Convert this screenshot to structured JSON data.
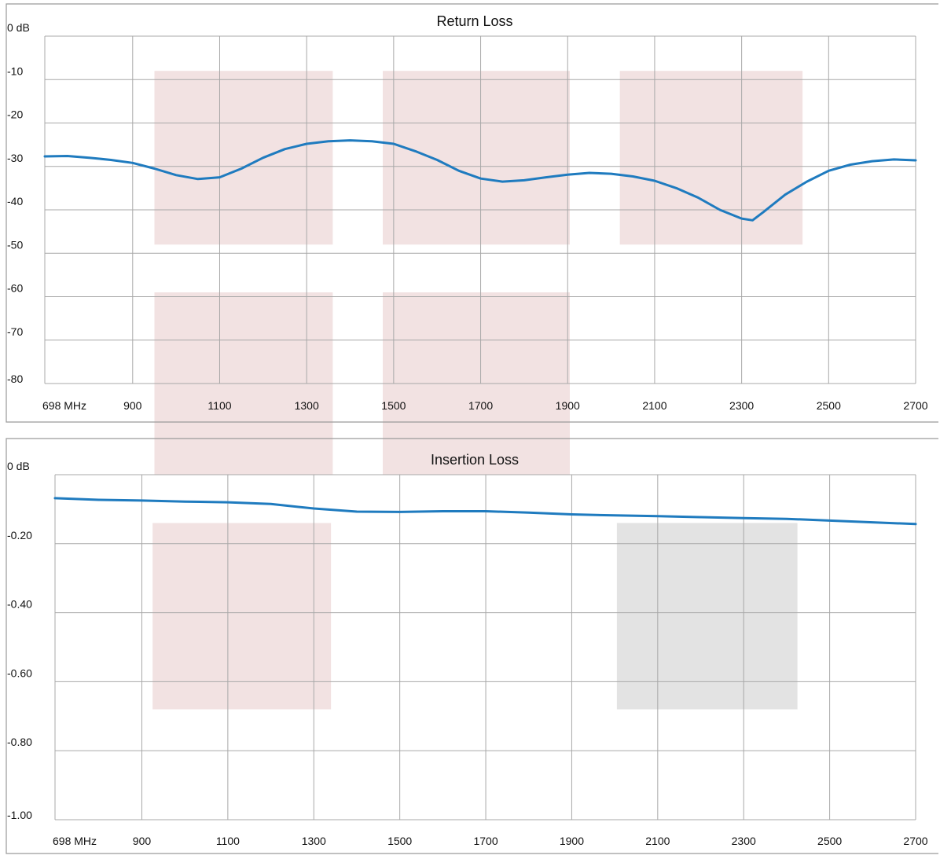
{
  "colors": {
    "line": "#1f7bbf",
    "band_red": "#f2e2e2",
    "band_gray": "#e3e3e3",
    "grid": "#a8a8a8",
    "frame": "#9a9a9a"
  },
  "chart_data": [
    {
      "type": "line",
      "title": "Return Loss",
      "xlim": [
        698,
        2700
      ],
      "ylim": [
        -80,
        0
      ],
      "x_ticks": [
        698,
        900,
        1100,
        1300,
        1500,
        1700,
        1900,
        2100,
        2300,
        2500,
        2700
      ],
      "x_tick_labels": [
        "698 MHz",
        "900",
        "1100",
        "1300",
        "1500",
        "1700",
        "1900",
        "2100",
        "2300",
        "2500",
        "2700"
      ],
      "y_ticks": [
        0,
        -10,
        -20,
        -30,
        -40,
        -50,
        -60,
        -70,
        -80
      ],
      "y_tick_labels": [
        "0 dB",
        "-10",
        "-20",
        "-30",
        "-40",
        "-50",
        "-60",
        "-70",
        "-80"
      ],
      "grid": true,
      "series": [
        {
          "x": [
            698,
            750,
            800,
            850,
            900,
            950,
            1000,
            1050,
            1100,
            1150,
            1200,
            1250,
            1300,
            1350,
            1400,
            1450,
            1500,
            1550,
            1600,
            1650,
            1700,
            1750,
            1800,
            1850,
            1900,
            1950,
            2000,
            2050,
            2100,
            2150,
            2200,
            2250,
            2300,
            2325,
            2350,
            2400,
            2450,
            2500,
            2550,
            2600,
            2650,
            2700
          ],
          "y": [
            -27.7,
            -27.6,
            -28.0,
            -28.5,
            -29.2,
            -30.5,
            -32.0,
            -32.9,
            -32.5,
            -30.5,
            -28.0,
            -26.0,
            -24.8,
            -24.2,
            -24.0,
            -24.2,
            -24.8,
            -26.5,
            -28.5,
            -31.0,
            -32.8,
            -33.5,
            -33.2,
            -32.5,
            -31.9,
            -31.5,
            -31.7,
            -32.3,
            -33.3,
            -35.0,
            -37.2,
            -40.0,
            -42.0,
            -42.4,
            -40.5,
            -36.5,
            -33.5,
            -31.0,
            -29.6,
            -28.8,
            -28.4,
            -28.6
          ]
        }
      ],
      "shaded_bands": [
        {
          "x_start": 950,
          "x_end": 1360,
          "y_top": -8,
          "y_bottom": -48,
          "color": "red"
        },
        {
          "x_start": 1475,
          "x_end": 1905,
          "y_top": -8,
          "y_bottom": -48,
          "color": "red"
        },
        {
          "x_start": 2020,
          "x_end": 2440,
          "y_top": -8,
          "y_bottom": -48,
          "color": "red"
        },
        {
          "x_start": 950,
          "x_end": 1360,
          "y_top": -59,
          "y_bottom": -80,
          "color": "red"
        },
        {
          "x_start": 1475,
          "x_end": 1905,
          "y_top": -59,
          "y_bottom": -80,
          "color": "red"
        }
      ]
    },
    {
      "type": "line",
      "title": "Insertion Loss",
      "xlim": [
        698,
        2700
      ],
      "ylim": [
        -1.0,
        0
      ],
      "x_ticks": [
        698,
        900,
        1100,
        1300,
        1500,
        1700,
        1900,
        2100,
        2300,
        2500,
        2700
      ],
      "x_tick_labels": [
        "698 MHz",
        "900",
        "1100",
        "1300",
        "1500",
        "1700",
        "1900",
        "2100",
        "2300",
        "2500",
        "2700"
      ],
      "y_ticks": [
        0,
        -0.2,
        -0.4,
        -0.6,
        -0.8,
        -1.0
      ],
      "y_tick_labels": [
        "0 dB",
        "-0.20",
        "-0.40",
        "-0.60",
        "-0.80",
        "-1.00"
      ],
      "grid": true,
      "series": [
        {
          "x": [
            698,
            800,
            900,
            1000,
            1100,
            1200,
            1300,
            1400,
            1500,
            1600,
            1700,
            1800,
            1900,
            2000,
            2100,
            2200,
            2300,
            2400,
            2500,
            2600,
            2700
          ],
          "y": [
            -0.068,
            -0.073,
            -0.075,
            -0.078,
            -0.08,
            -0.085,
            -0.098,
            -0.107,
            -0.108,
            -0.106,
            -0.106,
            -0.11,
            -0.115,
            -0.118,
            -0.12,
            -0.123,
            -0.126,
            -0.128,
            -0.133,
            -0.138,
            -0.143
          ]
        }
      ],
      "shaded_bands": [
        {
          "x_start": 925,
          "x_end": 1340,
          "y_top": -0.14,
          "y_bottom": -0.68,
          "color": "red"
        },
        {
          "x_start": 2005,
          "x_end": 2425,
          "y_top": -0.14,
          "y_bottom": -0.68,
          "color": "gray"
        }
      ]
    }
  ]
}
